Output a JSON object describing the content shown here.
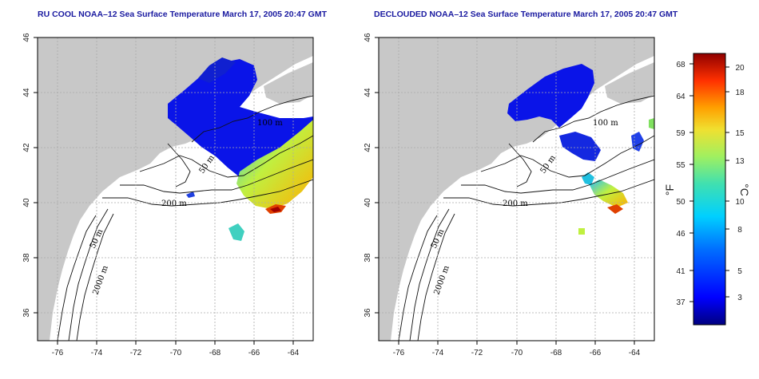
{
  "panels": [
    {
      "id": "left",
      "title": "RU COOL NOAA–12 Sea Surface Temperature March 17, 2005 20:47 GMT",
      "contour_labels": [
        "100 m",
        "50 m",
        "200 m",
        "50 m",
        "2000 m"
      ]
    },
    {
      "id": "right",
      "title": "DECLOUDED NOAA–12 Sea Surface Temperature March 17, 2005 20:47 GMT",
      "contour_labels": [
        "100 m",
        "50 m",
        "200 m",
        "50 m",
        "2000 m"
      ]
    }
  ],
  "axes": {
    "lon_ticks": [
      "-76",
      "-74",
      "-72",
      "-70",
      "-68",
      "-66",
      "-64"
    ],
    "lat_ticks": [
      "46",
      "44",
      "42",
      "40",
      "38",
      "36"
    ],
    "lon_range": [
      -77,
      -63
    ],
    "lat_range": [
      35,
      46
    ],
    "grid": "dotted"
  },
  "colorbar": {
    "f_ticks": [
      "68",
      "64",
      "59",
      "55",
      "50",
      "46",
      "41",
      "37"
    ],
    "c_ticks": [
      "20",
      "18",
      "15",
      "13",
      "10",
      "8",
      "5",
      "3"
    ],
    "f_label": "°F",
    "c_label": "°C",
    "colors": [
      "#000080",
      "#0000ff",
      "#0080ff",
      "#00d0ff",
      "#40e0c0",
      "#80f080",
      "#e0f040",
      "#ffc000",
      "#ff6000",
      "#d00000",
      "#800000"
    ]
  },
  "colors": {
    "land": "#c8c8c8",
    "title": "#1a1aa0",
    "ocean": "#ffffff"
  }
}
